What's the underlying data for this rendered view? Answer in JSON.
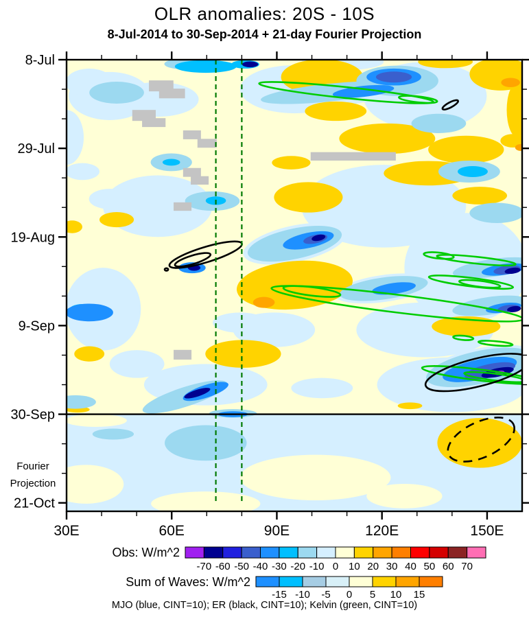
{
  "window": {
    "title": "OLR anomalies: 20S - 10S",
    "subtitle": "8-Jul-2014 to 30-Sep-2014 + 21-day Fourier Projection"
  },
  "chart_data": {
    "type": "heatmap",
    "subtype": "hovmoller-filled-contour",
    "title": "OLR anomalies: 20S - 10S",
    "subtitle": "8-Jul-2014 to 30-Sep-2014 + 21-day Fourier Projection",
    "field_units": "W/m^2",
    "x_axis": {
      "unit": "degrees_east",
      "range": [
        30,
        160
      ],
      "major_ticks": [
        30,
        60,
        90,
        120,
        150
      ],
      "major_tick_labels": [
        "30E",
        "60E",
        "90E",
        "120E",
        "150E"
      ],
      "minor_ticks": [
        40,
        50,
        70,
        80,
        100,
        110,
        130,
        140
      ]
    },
    "y_axis": {
      "unit": "date",
      "start_date": "8-Jul-2014",
      "range_days": [
        0,
        107
      ],
      "major_tick_days": [
        0,
        21,
        42,
        63,
        84,
        105
      ],
      "major_tick_labels": [
        "8-Jul",
        "29-Jul",
        "19-Aug",
        "9-Sep",
        "30-Sep",
        "21-Oct"
      ],
      "minor_tick_days": [
        7,
        14,
        28,
        35,
        49,
        56,
        70,
        77,
        91,
        98
      ],
      "region_label_lines": [
        "Fourier",
        "Projection"
      ]
    },
    "obs_colorbar": {
      "label": "Obs: W/m^2",
      "cell_colors": [
        "#A020F0",
        "#000090",
        "#2020DF",
        "#3A5FCD",
        "#1E90FF",
        "#00BFFF",
        "#9CD9F0",
        "#D5EFFF",
        "#FFFFD6",
        "#FFD300",
        "#FFA500",
        "#FF7F00",
        "#FF0000",
        "#D40000",
        "#8B2323",
        "#FF6EB4"
      ],
      "boundary_labels": [
        "-70",
        "-60",
        "-50",
        "-40",
        "-30",
        "-20",
        "-10",
        "0",
        "10",
        "20",
        "30",
        "40",
        "50",
        "60",
        "70"
      ]
    },
    "waves_colorbar": {
      "label": "Sum of Waves: W/m^2",
      "cell_colors": [
        "#1E90FF",
        "#00BFFF",
        "#A6CDE4",
        "#D8F0F8",
        "#FFFFD6",
        "#FFD300",
        "#FFA500",
        "#FF7F00"
      ],
      "boundary_labels": [
        "-15",
        "-10",
        "-5",
        "0",
        "5",
        "10",
        "15"
      ]
    },
    "caption": "MJO (blue, CINT=10); ER (black, CINT=10); Kelvin (green, CINT=10)",
    "field": {
      "background_value": 5,
      "projection_base_value": -5,
      "projection_start_day": 84,
      "blob_format": [
        "lon_center_E",
        "day_from_8Jul",
        "radius_lon_deg",
        "radius_days",
        "rotation_deg",
        "anomaly_value_wm2"
      ],
      "blobs": [
        [
          42.3,
          8.6,
          11.7,
          5.7,
          0,
          -5
        ],
        [
          56,
          9.4,
          11.7,
          4.1,
          0,
          -5
        ],
        [
          95.1,
          7,
          15.6,
          5.7,
          0,
          -5
        ],
        [
          108.8,
          0.5,
          11.7,
          2,
          0,
          -5
        ],
        [
          36.5,
          5.4,
          6.8,
          3.3,
          0,
          -5
        ],
        [
          44.3,
          7.8,
          9,
          3.3,
          0,
          -5
        ],
        [
          132.3,
          8.6,
          17.6,
          8.1,
          0,
          -5
        ],
        [
          56,
          34.7,
          15.6,
          7.3,
          0,
          -5
        ],
        [
          34.5,
          26.5,
          4.9,
          2,
          0,
          -5
        ],
        [
          42.3,
          33,
          5.9,
          2.4,
          0,
          -5
        ],
        [
          30,
          18.4,
          4.9,
          6.5,
          0,
          -5
        ],
        [
          120.5,
          34.7,
          23.5,
          9.8,
          0,
          -5
        ],
        [
          144,
          49.3,
          17.6,
          13,
          0,
          -5
        ],
        [
          40.4,
          59.1,
          10.8,
          9.8,
          0,
          -5
        ],
        [
          89.2,
          64,
          11.7,
          4.1,
          0,
          -5
        ],
        [
          132.3,
          64,
          19.6,
          6.5,
          0,
          -5
        ],
        [
          69.7,
          77,
          17.6,
          4.9,
          0,
          -5
        ],
        [
          140.1,
          77,
          21.5,
          6.5,
          0,
          -5
        ],
        [
          102.9,
          77.8,
          8.8,
          2.4,
          0,
          -5
        ],
        [
          50.1,
          72.1,
          7.8,
          3.3,
          0,
          -5
        ],
        [
          79.5,
          62.3,
          7.8,
          2.4,
          0,
          -5
        ],
        [
          104.9,
          7.8,
          21,
          3.5,
          -6,
          -5
        ],
        [
          120.5,
          54.2,
          14,
          3.2,
          -8,
          -5
        ],
        [
          95.1,
          43.6,
          15,
          4.3,
          -12,
          -5
        ],
        [
          147.9,
          72.9,
          17,
          4.5,
          -12,
          -5
        ],
        [
          35.5,
          100.6,
          10.8,
          4.6,
          0,
          5
        ],
        [
          69.7,
          105.2,
          15.6,
          2.9,
          0,
          5
        ],
        [
          101,
          99,
          21.5,
          5.4,
          0,
          5
        ],
        [
          126.4,
          103.4,
          10.8,
          2.9,
          0,
          5
        ],
        [
          38.4,
          85.5,
          8.8,
          1.5,
          0,
          5
        ],
        [
          102.9,
          4.1,
          11.7,
          4.2,
          0,
          15
        ],
        [
          153.8,
          3.4,
          8.8,
          3.9,
          0,
          15
        ],
        [
          138.1,
          0.5,
          7.8,
          1.5,
          0,
          15
        ],
        [
          106.8,
          12.2,
          8.8,
          2.3,
          0,
          15
        ],
        [
          121.5,
          18.7,
          13.7,
          3.6,
          0,
          15
        ],
        [
          144,
          21.3,
          10.8,
          3.3,
          0,
          15
        ],
        [
          133.2,
          26.9,
          12.7,
          2.9,
          0,
          15
        ],
        [
          147.9,
          32.2,
          7.8,
          2.1,
          0,
          15
        ],
        [
          44.3,
          37.9,
          4.9,
          1.8,
          0,
          15
        ],
        [
          31.6,
          39.6,
          2.9,
          1.5,
          0,
          15
        ],
        [
          99,
          32.6,
          9.8,
          3.6,
          0,
          15
        ],
        [
          94.1,
          24.4,
          5.5,
          1.6,
          0,
          15
        ],
        [
          95.1,
          53.4,
          16.6,
          5.7,
          -5,
          15
        ],
        [
          80.4,
          69.7,
          10.8,
          3.3,
          0,
          15
        ],
        [
          36.5,
          69.7,
          4.3,
          1.8,
          0,
          15
        ],
        [
          144,
          63.2,
          9.8,
          2.4,
          0,
          15
        ],
        [
          147.9,
          90.8,
          12.1,
          5.9,
          0,
          15
        ],
        [
          128,
          82,
          3.5,
          0.8,
          0,
          15
        ],
        [
          33.1,
          82.9,
          3.5,
          0.7,
          0,
          15
        ],
        [
          158.7,
          11.9,
          3.1,
          6.5,
          0,
          15
        ],
        [
          157.3,
          19.2,
          3.5,
          1.6,
          0,
          15
        ],
        [
          63.8,
          1,
          5.9,
          1.3,
          0,
          -15
        ],
        [
          44.3,
          7.8,
          7.8,
          2.6,
          0,
          -15
        ],
        [
          59.9,
          24.3,
          5.9,
          2.1,
          0,
          -15
        ],
        [
          71.6,
          33.5,
          7.8,
          2.3,
          0,
          -15
        ],
        [
          124.4,
          5,
          11.7,
          3.6,
          0,
          -15
        ],
        [
          136.2,
          15.1,
          7.8,
          2.3,
          0,
          -15
        ],
        [
          144.9,
          26.5,
          8.8,
          2.6,
          0,
          -15
        ],
        [
          152.8,
          36.3,
          7.8,
          2.4,
          0,
          -15
        ],
        [
          95.1,
          43.6,
          13.7,
          3.6,
          -12,
          -15
        ],
        [
          120.5,
          54.2,
          12.7,
          2.6,
          -8,
          -15
        ],
        [
          63.8,
          79.9,
          12.7,
          2.3,
          -18,
          -15
        ],
        [
          147.9,
          72.9,
          15.6,
          3.9,
          -12,
          -15
        ],
        [
          151.8,
          49.3,
          11.7,
          2.1,
          -8,
          -15
        ],
        [
          150.8,
          58.3,
          10.8,
          2.1,
          -8,
          -15
        ],
        [
          104.9,
          7.8,
          19.6,
          2.1,
          -6,
          -15
        ],
        [
          69.7,
          90.8,
          11.7,
          4.2,
          0,
          -15
        ],
        [
          43.3,
          88.7,
          5.9,
          1.3,
          0,
          -15
        ],
        [
          32.5,
          81.1,
          5.9,
          1.6,
          0,
          -15
        ],
        [
          77.5,
          83.8,
          6.8,
          1,
          0,
          -15
        ],
        [
          69.7,
          1.6,
          8.8,
          1.5,
          0,
          -25
        ],
        [
          81,
          1.1,
          4,
          1,
          0,
          -25
        ],
        [
          34.5,
          59.4,
          3.9,
          1.5,
          0,
          -25
        ],
        [
          72.6,
          33.4,
          2.9,
          1,
          0,
          -25
        ],
        [
          145.9,
          26.5,
          4.3,
          1.3,
          0,
          -25
        ],
        [
          59.9,
          24.3,
          2.5,
          0.8,
          0,
          -25
        ],
        [
          99,
          42.8,
          7.4,
          1.8,
          -12,
          -35
        ],
        [
          123.4,
          54.2,
          6.3,
          1.3,
          -8,
          -35
        ],
        [
          36.5,
          59.9,
          6.8,
          2.1,
          0,
          -35
        ],
        [
          147.9,
          73.4,
          10.8,
          2.4,
          -12,
          -35
        ],
        [
          154.7,
          49.7,
          6.3,
          1.3,
          -8,
          -35
        ],
        [
          154.7,
          58.8,
          5.1,
          1.1,
          -8,
          -35
        ],
        [
          114.7,
          7.5,
          8.8,
          1.3,
          -6,
          -35
        ],
        [
          123.4,
          4.1,
          7.8,
          2,
          0,
          -35
        ],
        [
          65.8,
          49.3,
          3.9,
          1.3,
          0,
          -35
        ],
        [
          77.5,
          84,
          4.3,
          0.7,
          0,
          -35
        ],
        [
          69.7,
          78.6,
          6.8,
          1.5,
          -18,
          -35
        ],
        [
          123.4,
          4.1,
          5.1,
          1.3,
          0,
          -45
        ],
        [
          101,
          42.5,
          3.5,
          1,
          -12,
          -45
        ],
        [
          150.8,
          73.7,
          7.4,
          1.6,
          -12,
          -45
        ],
        [
          155.7,
          49.8,
          3.9,
          1,
          -8,
          -45
        ],
        [
          156.1,
          58.9,
          3.1,
          0.8,
          -8,
          -45
        ],
        [
          82.4,
          1.1,
          2.3,
          0.7,
          0,
          -65
        ],
        [
          101.9,
          42.2,
          2,
          0.7,
          -12,
          -65
        ],
        [
          66.4,
          49.3,
          1.8,
          0.7,
          0,
          -65
        ],
        [
          153,
          74.1,
          4.7,
          1,
          -12,
          -65
        ],
        [
          157.3,
          50,
          2.3,
          0.7,
          -8,
          -65
        ],
        [
          67.3,
          79,
          3.9,
          0.8,
          -18,
          -65
        ],
        [
          157.7,
          59.1,
          2,
          0.7,
          -8,
          -65
        ],
        [
          153.6,
          74.2,
          1.4,
          0.5,
          -12,
          -75
        ],
        [
          86.3,
          57.5,
          3.1,
          1.3,
          0,
          25
        ],
        [
          159.6,
          20.8,
          1.6,
          0.8,
          0,
          25
        ],
        [
          156.7,
          5.4,
          2.7,
          1.1,
          0,
          25
        ]
      ],
      "missing_data_color": "#C4C4C4",
      "missing_data_rect_format": [
        "lon_center_E",
        "day_center",
        "width_deg",
        "height_days"
      ],
      "missing_data_rects": [
        [
          57,
          6.2,
          7,
          2.6
        ],
        [
          60.1,
          8,
          7.4,
          2.3
        ],
        [
          52.1,
          13.2,
          6.7,
          2.6
        ],
        [
          54.9,
          14.9,
          6.7,
          2.1
        ],
        [
          65.8,
          17.8,
          5.1,
          2.1
        ],
        [
          70.1,
          19.8,
          5.5,
          2.1
        ],
        [
          65.8,
          26.7,
          5.1,
          2.1
        ],
        [
          68,
          28.6,
          5.1,
          2
        ],
        [
          63.1,
          34.8,
          5.1,
          2
        ],
        [
          111.8,
          22.9,
          24.3,
          2
        ],
        [
          63.1,
          69.9,
          5.1,
          2.3
        ]
      ]
    },
    "overlays": {
      "kelvin": {
        "name": "Kelvin wave contours",
        "color": "#00CC00",
        "cint_wm2": 10,
        "contour_format": [
          "lon_center_E",
          "day_center",
          "radius_lon_deg",
          "radius_days",
          "rotation_deg"
        ],
        "contours": [
          [
            109.8,
            7.8,
            25,
            1.3,
            6
          ],
          [
            130.3,
            9.4,
            5.5,
            0.7,
            6
          ],
          [
            124.4,
            57.8,
            36.2,
            2.1,
            7
          ],
          [
            100,
            54.9,
            8.2,
            1,
            7
          ],
          [
            146.9,
            47.5,
            11.3,
            0.8,
            6
          ],
          [
            145.4,
            52.7,
            12.1,
            1,
            7
          ],
          [
            147.9,
            53.1,
            5.9,
            0.7,
            7
          ],
          [
            136.2,
            46.4,
            4.3,
            0.7,
            6
          ],
          [
            147.9,
            74.7,
            16.6,
            1.3,
            7
          ],
          [
            152.2,
            75.2,
            8.8,
            0.8,
            7
          ],
          [
            143.2,
            65.9,
            2.9,
            0.5,
            5
          ],
          [
            152.4,
            67.2,
            4.9,
            0.5,
            5
          ]
        ]
      },
      "er": {
        "name": "Equatorial Rossby wave contours",
        "color": "#000000",
        "cint_wm2": 10,
        "contour_format": [
          "lon_center_E",
          "day_center",
          "radius_lon_deg",
          "radius_days",
          "rotation_deg",
          "dashed"
        ],
        "contours": [
          [
            69.7,
            46.2,
            10.8,
            1.8,
            -17,
            0
          ],
          [
            66,
            47.4,
            5.3,
            1,
            -17,
            0
          ],
          [
            58.5,
            49.7,
            0.5,
            0.3,
            0,
            0
          ],
          [
            139.5,
            10.7,
            2.5,
            0.6,
            -28,
            0
          ],
          [
            147.3,
            74.1,
            15.3,
            3.3,
            -14,
            0
          ],
          [
            148.3,
            90,
            10.2,
            4.2,
            -25,
            1
          ]
        ]
      },
      "mjo": {
        "name": "MJO contours",
        "color": "#0000FF",
        "cint_wm2": 10,
        "contours": []
      },
      "meridian_lines": {
        "color": "#007A00",
        "style": "dashed",
        "lons": [
          72.6,
          80
        ],
        "day_span": [
          0,
          105
        ]
      },
      "obs_end_line_day": 84
    }
  }
}
